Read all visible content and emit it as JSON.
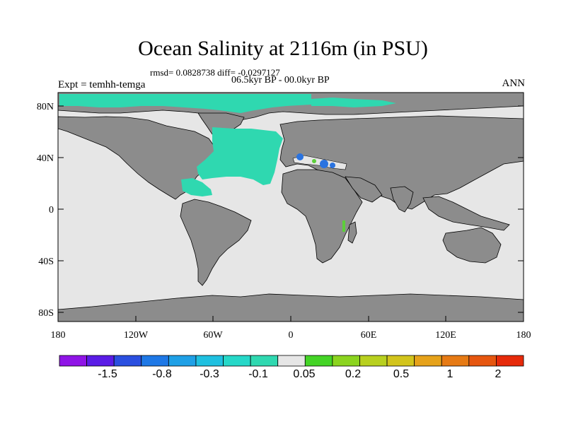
{
  "title": "Ocean Salinity at 2116m (in PSU)",
  "stats": "rmsd= 0.0828738 diff= -0.0297127",
  "period": "06.5kyr BP - 00.0kyr BP",
  "experiment": "Expt = temhh-temga",
  "season": "ANN",
  "colors": {
    "land": "#8c8c8c",
    "ocean_neutral": "#e6e6e6",
    "coast": "#000000",
    "fresh_anomaly": "#2fd8b0",
    "salty_anomaly": "#5ccf3a",
    "strong_fresh": "#2a73e0"
  },
  "map": {
    "lat_labels": [
      "80N",
      "40N",
      "0",
      "40S",
      "80S"
    ],
    "lon_labels": [
      "180",
      "120W",
      "60W",
      "0",
      "60E",
      "120E",
      "180"
    ]
  },
  "colorbar": {
    "colors": [
      "#8f14e6",
      "#5a1ce6",
      "#2a4fe0",
      "#1e78e6",
      "#1fa0e6",
      "#1fc0e0",
      "#26d8c8",
      "#2fd8b0",
      "#e6e6e6",
      "#44d426",
      "#8bd41f",
      "#b8d01f",
      "#d2c41c",
      "#e6a21a",
      "#e67a14",
      "#e6560f",
      "#e62a0a"
    ],
    "labels": [
      "-1.5",
      "-0.8",
      "-0.3",
      "-0.1",
      "0.05",
      "0.2",
      "0.5",
      "1",
      "2"
    ]
  }
}
